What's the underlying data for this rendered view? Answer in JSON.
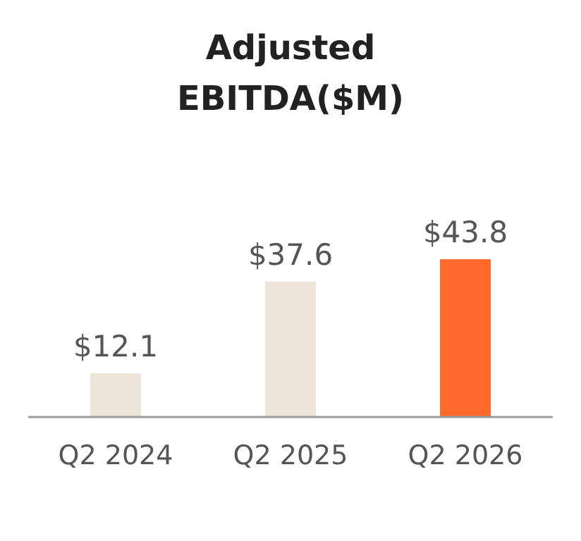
{
  "chart_data": {
    "type": "bar",
    "title": "Adjusted EBITDA($M)",
    "categories": [
      "Q2 2024",
      "Q2 2025",
      "Q2 2026"
    ],
    "values": [
      12.1,
      37.6,
      43.8
    ],
    "colors": [
      "#ede5da",
      "#ede5da",
      "#ff6a2b"
    ],
    "value_labels": [
      "$12.1",
      "$37.6",
      "$43.8"
    ]
  }
}
